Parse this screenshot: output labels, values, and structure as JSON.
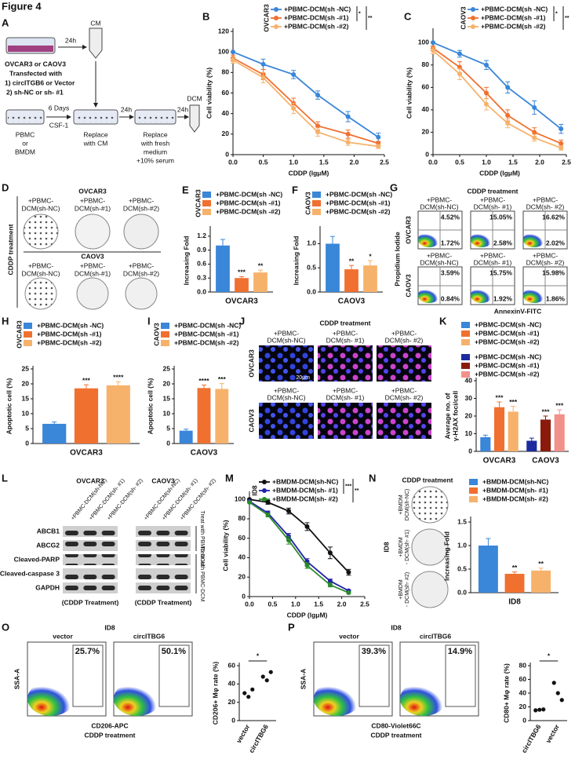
{
  "figure": "Figure 4",
  "panel_a": {
    "label": "A",
    "cm": "CM",
    "t1": "24h",
    "cells": "OVCAR3 or CAOV3",
    "transfected": "Transfected with",
    "item1": "1) circITGB6 or Vector",
    "item2": "2) sh-NC or sh- #1",
    "days": "6 Days",
    "csf": "CSF-1",
    "pbmc": "PBMC",
    "or": "or",
    "bmdm": "BMDM",
    "replace1": [
      "Replace",
      "with CM"
    ],
    "t2": "24h",
    "replace2": [
      "Replace",
      "with fresh",
      "medium",
      "+10% serum"
    ],
    "t3": "24h",
    "dcm": "DCM"
  },
  "panel_d": {
    "label": "D",
    "ovcar3": "OVCAR3",
    "caov3": "CAOV3",
    "treatment": "CDDP treatment",
    "conditions": [
      [
        "+PBMC-",
        "DCM(sh-NC)"
      ],
      [
        "+PBMC-",
        "DCM(sh-#1)"
      ],
      [
        "+PBMC-",
        "DCM(sh-#2)"
      ]
    ]
  },
  "panel_g": {
    "label": "G",
    "treatment": "CDDP treatment",
    "conditions": [
      [
        "+PBMC-",
        "DCM(sh-NC)"
      ],
      [
        "+PBMC-",
        "DCM(sh- #1)"
      ],
      [
        "+PBMC-",
        "DCM(sh- #2)"
      ]
    ],
    "rows": [
      "OVCAR3",
      "CAOV3"
    ],
    "ylabel": "Propidium Iodide",
    "xlabel": "AnnexinV-FITC",
    "quadrants": [
      [
        [
          "4.52%",
          "1.72%"
        ],
        [
          "15.05%",
          "2.58%"
        ],
        [
          "16.62%",
          "2.02%"
        ]
      ],
      [
        [
          "3.59%",
          "0.84%"
        ],
        [
          "15.75%",
          "1.92%"
        ],
        [
          "15.98%",
          "1.86%"
        ]
      ]
    ]
  },
  "panel_j": {
    "label": "J",
    "treatment": "CDDP treatment",
    "conditions": [
      [
        "+PBMC-",
        "DCM(sh-NC)"
      ],
      [
        "+PBMC-",
        "DCM(sh- #1)"
      ],
      [
        "+PBMC-",
        "DCM(sh- #2)"
      ]
    ],
    "rows": [
      "OVCAR3",
      "CAOV3"
    ],
    "scale": "20μm"
  },
  "panel_l": {
    "label": "L",
    "lines": [
      "OVCAR3",
      "CAOV3"
    ],
    "conditions": [
      "+PBMC-DCM(sh-NC)",
      "+PBMC-DCM(sh- #1)",
      "+PBMC-DCM(sh- #2)"
    ],
    "proteins": [
      "ABCB1",
      "ABCG2",
      "Cleaved-PARP",
      "Cleaved-caspase 3",
      "GAPDH"
    ],
    "footer": "(CDDP Treatment)",
    "side": "Treat with PBMC-DCM"
  },
  "panel_n": {
    "treatment": "CDDP treatment",
    "conditions": [
      [
        "+BMDM",
        "DCM(sh-NC)"
      ],
      [
        "+BMDM",
        "- DCM(sh- #1)"
      ],
      [
        "+BMDM",
        "- DCM(sh- #2)"
      ]
    ],
    "row": "ID8"
  },
  "panel_o": {
    "title": "ID8",
    "plots": [
      "vector",
      "circITBG6"
    ],
    "gates": [
      "25.7%",
      "50.1%"
    ],
    "ylabel": "SSA-A",
    "xlabel": "CD206-APC",
    "treatment": "CDDP treatment"
  },
  "panel_p": {
    "title": "ID8",
    "plots": [
      "vector",
      "circITBG6"
    ],
    "gates": [
      "39.3%",
      "14.9%"
    ],
    "ylabel": "SSA-A",
    "xlabel": "CD80-Violet66C",
    "treatment": "CDDP treatment"
  },
  "chart_data": [
    {
      "panel": "B",
      "type": "line",
      "legend_title": "OVCAR3",
      "legend_marks": [
        "*",
        "**"
      ],
      "xlabel": "CDDP (lgμM)",
      "ylabel": "Cell viability (%)",
      "x": [
        0,
        0.5,
        1,
        1.4,
        1.9,
        2.4
      ],
      "xlim": [
        0,
        2.5
      ],
      "xticks": [
        {
          "value": 0,
          "label": "0.0"
        },
        0.5,
        {
          "value": 1,
          "label": "1.0"
        },
        1.5,
        {
          "value": 2,
          "label": "2.0"
        },
        2.5
      ],
      "ylim": [
        0,
        120
      ],
      "yticks": [
        0,
        20,
        40,
        60,
        80,
        100,
        120
      ],
      "series": [
        {
          "name": "+PBMC-DCM(sh -NC)",
          "color": "#3a86d8",
          "values": [
            100,
            88,
            78,
            58,
            37,
            17
          ],
          "errors": [
            0,
            5,
            4,
            4,
            5,
            4
          ]
        },
        {
          "name": "+PBMC-DCM(sh -#1)",
          "color": "#f07030",
          "values": [
            94,
            78,
            50,
            28,
            20,
            11
          ],
          "errors": [
            3,
            5,
            5,
            4,
            4,
            2
          ]
        },
        {
          "name": "+PBMC-DCM(sh -#2)",
          "color": "#f6b26b",
          "values": [
            92,
            75,
            45,
            22,
            12,
            8
          ],
          "errors": [
            3,
            5,
            5,
            4,
            3,
            2
          ]
        }
      ]
    },
    {
      "panel": "C",
      "type": "line",
      "legend_title": "CAOV3",
      "legend_marks": [
        "*",
        "**"
      ],
      "xlabel": "CDDP (lgμM)",
      "ylabel": "Cell viability (%)",
      "x": [
        0,
        0.5,
        1,
        1.4,
        1.9,
        2.4
      ],
      "xlim": [
        0,
        2.5
      ],
      "xticks": [
        {
          "value": 0,
          "label": "0.0"
        },
        0.5,
        {
          "value": 1,
          "label": "1.0"
        },
        1.5,
        {
          "value": 2,
          "label": "2.0"
        },
        2.5
      ],
      "ylim": [
        0,
        110
      ],
      "yticks": [
        0,
        20,
        40,
        60,
        80,
        100
      ],
      "series": [
        {
          "name": "+PBMC-DCM(sh -NC)",
          "color": "#3a86d8",
          "values": [
            100,
            90,
            80,
            60,
            42,
            23
          ],
          "errors": [
            0,
            3,
            4,
            5,
            6,
            4
          ]
        },
        {
          "name": "+PBMC-DCM(sh -#1)",
          "color": "#f07030",
          "values": [
            95,
            78,
            55,
            35,
            20,
            10
          ],
          "errors": [
            2,
            5,
            5,
            5,
            4,
            3
          ]
        },
        {
          "name": "+PBMC-DCM(sh -#2)",
          "color": "#f6b26b",
          "values": [
            93,
            72,
            45,
            28,
            15,
            6
          ],
          "errors": [
            3,
            5,
            5,
            4,
            3,
            2
          ]
        }
      ]
    },
    {
      "panel": "E",
      "type": "bar",
      "legend_title": "OVCAR3",
      "ylabel": "Increasing Fold",
      "categories": [
        "OVCAR3"
      ],
      "ylim": [
        0,
        1.35
      ],
      "yticks": [
        {
          "value": 0,
          "label": "0.0"
        },
        0.3,
        0.6,
        0.9,
        {
          "value": 1.2,
          "label": "1.2"
        }
      ],
      "series": [
        {
          "name": "+PBMC-DCM(sh -NC)",
          "color": "#3a86d8",
          "values": [
            1.0
          ],
          "errors": [
            0.13
          ]
        },
        {
          "name": "+PBMC-DCM(sh -#1)",
          "color": "#f07030",
          "values": [
            0.3
          ],
          "errors": [
            0.03
          ],
          "sig": [
            "***"
          ]
        },
        {
          "name": "+PBMC-DCM(sh -#2)",
          "color": "#f6b26b",
          "values": [
            0.42
          ],
          "errors": [
            0.05
          ],
          "sig": [
            "**"
          ]
        }
      ]
    },
    {
      "panel": "F",
      "type": "bar",
      "legend_title": "CAOV3",
      "ylabel": "Increasing Fold",
      "categories": [
        "CAOV3"
      ],
      "ylim": [
        0,
        1.3
      ],
      "yticks": [
        {
          "value": 0,
          "label": "0.0"
        },
        0.5,
        {
          "value": 1,
          "label": "1.0"
        }
      ],
      "series": [
        {
          "name": "+PBMC-DCM(sh -NC)",
          "color": "#3a86d8",
          "values": [
            1.0
          ],
          "errors": [
            0.15
          ]
        },
        {
          "name": "+PBMC-DCM(sh -#1)",
          "color": "#f07030",
          "values": [
            0.47
          ],
          "errors": [
            0.08
          ],
          "sig": [
            "**"
          ]
        },
        {
          "name": "+PBMC-DCM(sh -#2)",
          "color": "#f6b26b",
          "values": [
            0.55
          ],
          "errors": [
            0.1
          ],
          "sig": [
            "*"
          ]
        }
      ]
    },
    {
      "panel": "H",
      "type": "bar",
      "legend_title": "OVCAR3",
      "ylabel": "Apoptotic cell (%)",
      "categories": [
        "OVCAR3"
      ],
      "ylim": [
        0,
        25
      ],
      "yticks": [
        0,
        5,
        10,
        15,
        20,
        25
      ],
      "series": [
        {
          "name": "+PBMC-DCM(sh -NC)",
          "color": "#3a86d8",
          "values": [
            6.6
          ],
          "errors": [
            0.6
          ]
        },
        {
          "name": "+PBMC-DCM(sh -#1)",
          "color": "#f07030",
          "values": [
            18.5
          ],
          "errors": [
            1.2
          ],
          "sig": [
            "***"
          ]
        },
        {
          "name": "+PBMC-DCM(sh -#2)",
          "color": "#f6b26b",
          "values": [
            19.5
          ],
          "errors": [
            1.2
          ],
          "sig": [
            "****"
          ]
        }
      ]
    },
    {
      "panel": "I",
      "type": "bar",
      "legend_title": "CAOV3",
      "ylabel": "Apoptotic cell (%)",
      "categories": [
        "CAOV3"
      ],
      "ylim": [
        0,
        25
      ],
      "yticks": [
        0,
        5,
        10,
        15,
        20,
        25
      ],
      "series": [
        {
          "name": "+PBMC-DCM(sh -NC)",
          "color": "#3a86d8",
          "values": [
            4.3
          ],
          "errors": [
            0.5
          ]
        },
        {
          "name": "+PBMC-DCM(sh -#1)",
          "color": "#f07030",
          "values": [
            18.6
          ],
          "errors": [
            1.0
          ],
          "sig": [
            "****"
          ]
        },
        {
          "name": "+PBMC-DCM(sh -#2)",
          "color": "#f6b26b",
          "values": [
            18.3
          ],
          "errors": [
            1.8
          ],
          "sig": [
            "***"
          ]
        }
      ]
    },
    {
      "panel": "K",
      "type": "bar",
      "ylabel": [
        "Average no. of",
        "γ-H2AX foci/cell"
      ],
      "categories": [
        "OVCAR3",
        "CAOV3"
      ],
      "ylim": [
        0,
        40
      ],
      "yticks": [
        0,
        10,
        20,
        30,
        40
      ],
      "series": [
        {
          "name": "+PBMC-DCM(sh -NC)",
          "color": "#3a86d8",
          "values": [
            8,
            null
          ],
          "errors": [
            1.2,
            null
          ]
        },
        {
          "name": "+PBMC-DCM(sh -#1)",
          "color": "#f07030",
          "values": [
            25,
            null
          ],
          "errors": [
            3,
            null
          ],
          "sig": [
            "***",
            null
          ]
        },
        {
          "name": "+PBMC-DCM(sh -#2)",
          "color": "#f6b26b",
          "values": [
            22.5,
            null
          ],
          "errors": [
            3,
            null
          ],
          "sig": [
            "***",
            null
          ]
        },
        {
          "name": "+PBMC-DCM(sh -NC)",
          "color": "#1c2b9e",
          "values": [
            null,
            6
          ],
          "errors": [
            null,
            1.5
          ]
        },
        {
          "name": "+PBMC-DCM(sh -#1)",
          "color": "#8a1b0c",
          "values": [
            null,
            18
          ],
          "errors": [
            null,
            2
          ],
          "sig": [
            null,
            "***"
          ]
        },
        {
          "name": "+PBMC-DCM(sh -#2)",
          "color": "#f2908a",
          "values": [
            null,
            21
          ],
          "errors": [
            null,
            2.5
          ],
          "sig": [
            null,
            "***"
          ]
        }
      ]
    },
    {
      "panel": "M",
      "type": "line",
      "legend_title": "ID8",
      "legend_marks": [
        "***",
        "**"
      ],
      "xlabel": "CDDP (lgμM)",
      "ylabel": "Cell viability (%)",
      "x": [
        0,
        0.4,
        0.85,
        1.25,
        1.75,
        2.15
      ],
      "xlim": [
        0,
        2.5
      ],
      "xticks": [
        {
          "value": 0,
          "label": "0.0"
        },
        0.5,
        {
          "value": 1,
          "label": "1.0"
        },
        1.5,
        {
          "value": 2,
          "label": "2.0"
        },
        2.5
      ],
      "ylim": [
        0,
        105
      ],
      "yticks": [
        0,
        20,
        40,
        60,
        80,
        100
      ],
      "series": [
        {
          "name": "+BMDM-DCM(sh-NC)",
          "color": "#111111",
          "values": [
            100,
            97,
            88,
            72,
            45,
            25
          ],
          "errors": [
            0,
            2,
            3,
            4,
            6,
            3
          ]
        },
        {
          "name": "+BMDM-DCM(sh- #1)",
          "color": "#2222aa",
          "values": [
            98,
            86,
            62,
            36,
            16,
            6
          ],
          "errors": [
            0,
            2,
            3,
            3,
            2,
            1
          ]
        },
        {
          "name": "+BMDM-DCM(sh- #2)",
          "color": "#2a8a2a",
          "values": [
            97,
            84,
            58,
            32,
            12,
            4
          ],
          "errors": [
            0,
            2,
            4,
            3,
            2,
            1
          ]
        }
      ]
    },
    {
      "panel": "N",
      "type": "bar",
      "ylabel": "Increasing Fold",
      "categories": [
        "ID8"
      ],
      "ylim": [
        0,
        1.55
      ],
      "yticks": [
        {
          "value": 0,
          "label": "0.0"
        },
        0.5,
        {
          "value": 1,
          "label": "1.0"
        },
        1.5
      ],
      "series": [
        {
          "name": "+BMDM-DCM(sh-NC)",
          "color": "#3a86d8",
          "values": [
            1.0
          ],
          "errors": [
            0.15
          ]
        },
        {
          "name": "+BMDM-DCM(sh- #1)",
          "color": "#f07030",
          "values": [
            0.4
          ],
          "errors": [
            0.04
          ],
          "sig": [
            "**"
          ]
        },
        {
          "name": "+BMDM-DCM(sh- #2)",
          "color": "#f6b26b",
          "values": [
            0.47
          ],
          "errors": [
            0.05
          ],
          "sig": [
            "**"
          ]
        }
      ]
    },
    {
      "panel": "O",
      "type": "dot",
      "ylabel": "CD206+ Mφ rate (%)",
      "categories": [
        "vector",
        "circITBG6"
      ],
      "values": [
        [
          30,
          26,
          34
        ],
        [
          48,
          44,
          53
        ]
      ],
      "color": "#111111",
      "sig": "*",
      "ylim": [
        0,
        60
      ],
      "yticks": [
        0,
        20,
        40,
        60
      ]
    },
    {
      "panel": "P",
      "type": "dot",
      "ylabel": "CD80+ Mφ rate (%)",
      "categories": [
        "circITBG6",
        "vector"
      ],
      "values": [
        [
          15,
          15.8,
          16.3
        ],
        [
          55,
          40,
          30
        ]
      ],
      "color": "#111111",
      "sig": "*",
      "ylim": [
        0,
        80
      ],
      "yticks": [
        0,
        20,
        40,
        60,
        80
      ]
    }
  ]
}
